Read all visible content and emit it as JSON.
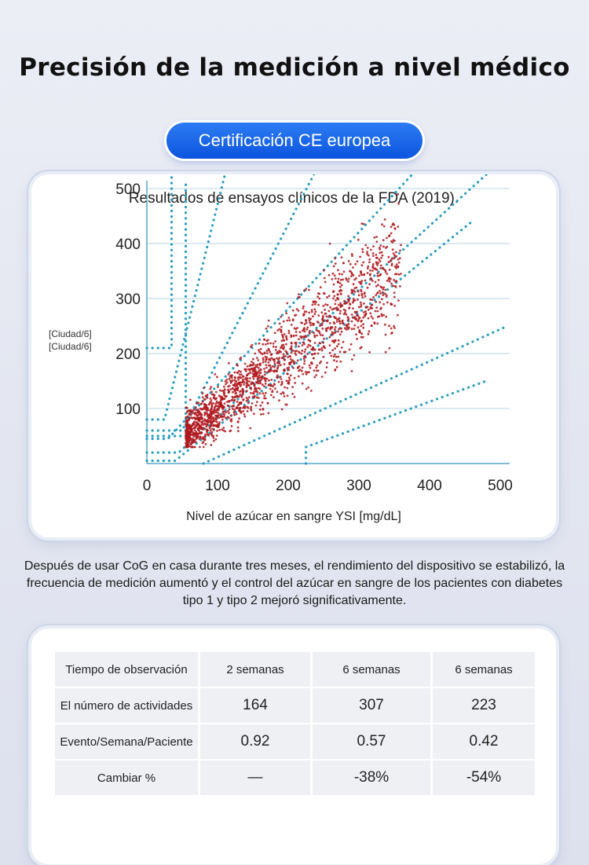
{
  "page": {
    "title": "Precisión de la medición a nivel médico",
    "badge": "Certificación CE europea",
    "description": "Después de usar CoG en casa durante tres meses, el rendimiento del dispositivo se estabilizó, la frecuencia de medición aumentó y el control del azúcar en sangre de los pacientes con diabetes tipo 1 y tipo 2 mejoró significativamente."
  },
  "chart_data": {
    "type": "scatter",
    "title": "Resultados de ensayos clínicos de la FDA (2019).",
    "xlabel": "Nivel de azúcar en sangre YSI [mg/dL]",
    "ylabel_lines": [
      "[Ciudad/6]",
      "[Ciudad/6]"
    ],
    "xlim": [
      0,
      500
    ],
    "ylim": [
      0,
      500
    ],
    "x_ticks": [
      0,
      100,
      200,
      300,
      400,
      500
    ],
    "y_ticks": [
      100,
      200,
      300,
      400,
      500
    ],
    "grid": true,
    "point_color": "#b0171d",
    "zone_line_color": "#2a9ec2",
    "scatter_cluster": {
      "x_range": [
        55,
        360
      ],
      "slope": 1.0,
      "points": 1800
    }
  },
  "table": {
    "headers": [
      "Tiempo de observación",
      "2 semanas",
      "6 semanas",
      "6 semanas"
    ],
    "rows": [
      {
        "label": "El número de actividades",
        "values": [
          "164",
          "307",
          "223"
        ]
      },
      {
        "label": "Evento/Semana/Paciente",
        "values": [
          "0.92",
          "0.57",
          "0.42"
        ]
      },
      {
        "label": "Cambiar %",
        "values": [
          "—",
          "-38%",
          "-54%"
        ]
      }
    ]
  }
}
